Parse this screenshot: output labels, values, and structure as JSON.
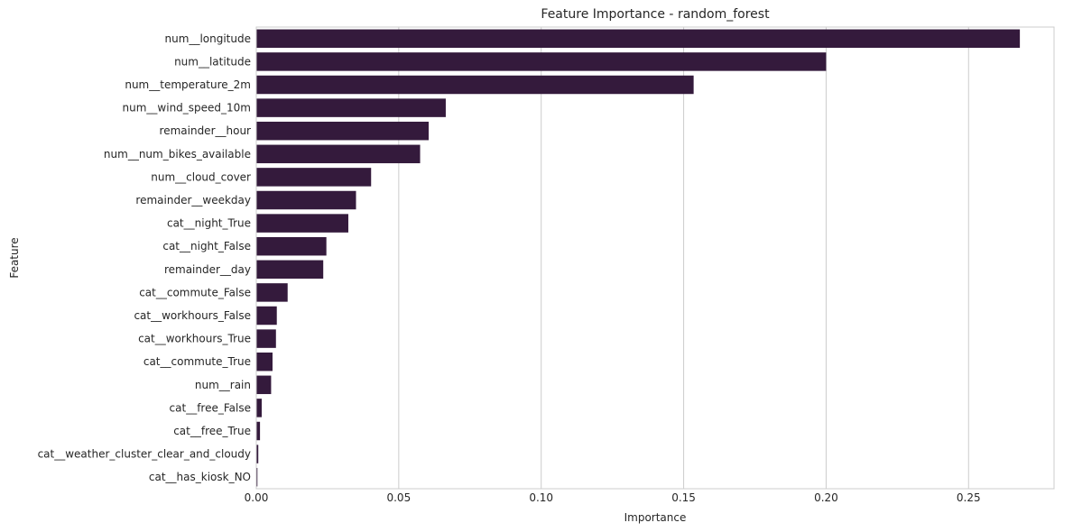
{
  "chart_data": {
    "type": "bar",
    "orientation": "horizontal",
    "title": "Feature Importance - random_forest",
    "xlabel": "Importance",
    "ylabel": "Feature",
    "xlim": [
      0,
      0.28
    ],
    "xticks": [
      0,
      0.05,
      0.1,
      0.15,
      0.2,
      0.25
    ],
    "xtick_labels": [
      "0.00",
      "0.05",
      "0.10",
      "0.15",
      "0.20",
      "0.25"
    ],
    "grid": true,
    "bar_color": "#341a3c",
    "categories": [
      "num__longitude",
      "num__latitude",
      "num__temperature_2m",
      "num__wind_speed_10m",
      "remainder__hour",
      "num__num_bikes_available",
      "num__cloud_cover",
      "remainder__weekday",
      "cat__night_True",
      "cat__night_False",
      "remainder__day",
      "cat__commute_False",
      "cat__workhours_False",
      "cat__workhours_True",
      "cat__commute_True",
      "num__rain",
      "cat__free_False",
      "cat__free_True",
      "cat__weather_cluster_clear_and_cloudy",
      "cat__has_kiosk_NO"
    ],
    "values": [
      0.268,
      0.2,
      0.1535,
      0.0665,
      0.0605,
      0.0575,
      0.0403,
      0.035,
      0.0323,
      0.0246,
      0.0235,
      0.011,
      0.0072,
      0.0069,
      0.0057,
      0.0052,
      0.0019,
      0.0013,
      0.0007,
      0.0004
    ]
  }
}
